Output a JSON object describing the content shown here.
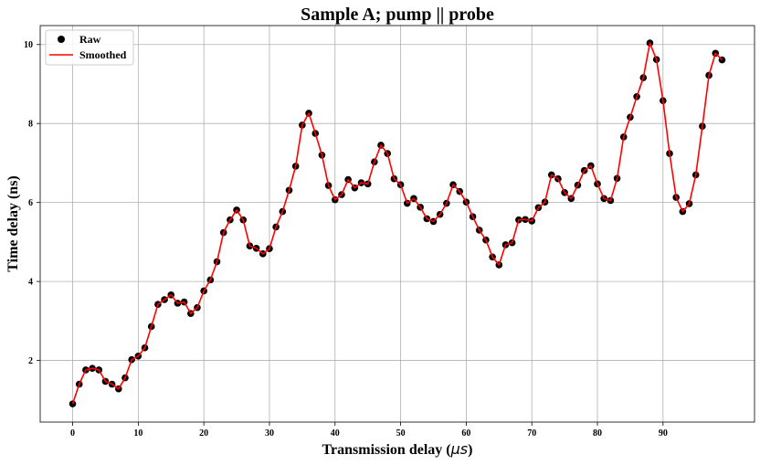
{
  "chart_data": {
    "type": "line",
    "title": "Sample A; pump || probe",
    "xlabel": "Transmission delay (",
    "xlabel_unit": "μs",
    "xlabel_close": ")",
    "ylabel": "Time delay (ns)",
    "xlim": [
      -4.95,
      103.95
    ],
    "ylim": [
      0.44,
      10.48
    ],
    "xticks": [
      0,
      10,
      20,
      30,
      40,
      50,
      60,
      70,
      80,
      90
    ],
    "yticks": [
      2,
      4,
      6,
      8,
      10
    ],
    "grid": true,
    "legend_position": "top-left",
    "colors": {
      "raw": "#000000",
      "smoothed": "#ff0000"
    },
    "series": [
      {
        "name": "Raw",
        "style": "scatter"
      },
      {
        "name": "Smoothed",
        "style": "line"
      }
    ],
    "x": [
      0,
      1,
      2,
      3,
      4,
      5,
      6,
      7,
      8,
      9,
      10,
      11,
      12,
      13,
      14,
      15,
      16,
      17,
      18,
      19,
      20,
      21,
      22,
      23,
      24,
      25,
      26,
      27,
      28,
      29,
      30,
      31,
      32,
      33,
      34,
      35,
      36,
      37,
      38,
      39,
      40,
      41,
      42,
      43,
      44,
      45,
      46,
      47,
      48,
      49,
      50,
      51,
      52,
      53,
      54,
      55,
      56,
      57,
      58,
      59,
      60,
      61,
      62,
      63,
      64,
      65,
      66,
      67,
      68,
      69,
      70,
      71,
      72,
      73,
      74,
      75,
      76,
      77,
      78,
      79,
      80,
      81,
      82,
      83,
      84,
      85,
      86,
      87,
      88,
      89,
      90,
      91,
      92,
      93,
      94,
      95,
      96,
      97,
      98,
      99
    ],
    "y": [
      0.9,
      1.4,
      1.76,
      1.8,
      1.76,
      1.47,
      1.4,
      1.28,
      1.56,
      2.02,
      2.11,
      2.32,
      2.86,
      3.42,
      3.54,
      3.66,
      3.45,
      3.48,
      3.19,
      3.34,
      3.76,
      4.04,
      4.5,
      5.24,
      5.56,
      5.81,
      5.56,
      4.9,
      4.84,
      4.7,
      4.83,
      5.38,
      5.77,
      6.31,
      6.92,
      7.96,
      8.26,
      7.75,
      7.2,
      6.43,
      6.07,
      6.2,
      6.58,
      6.37,
      6.5,
      6.47,
      7.03,
      7.45,
      7.24,
      6.6,
      6.45,
      5.98,
      6.1,
      5.88,
      5.59,
      5.52,
      5.7,
      5.98,
      6.45,
      6.28,
      6.01,
      5.64,
      5.3,
      5.05,
      4.62,
      4.42,
      4.93,
      4.98,
      5.56,
      5.57,
      5.53,
      5.87,
      6.01,
      6.7,
      6.6,
      6.25,
      6.1,
      6.44,
      6.81,
      6.93,
      6.47,
      6.1,
      6.05,
      6.61,
      7.66,
      8.16,
      8.68,
      9.16,
      10.04,
      9.62,
      8.58,
      7.24,
      6.13,
      5.77,
      5.97,
      6.7,
      7.93,
      9.22,
      9.78,
      9.61
    ]
  }
}
